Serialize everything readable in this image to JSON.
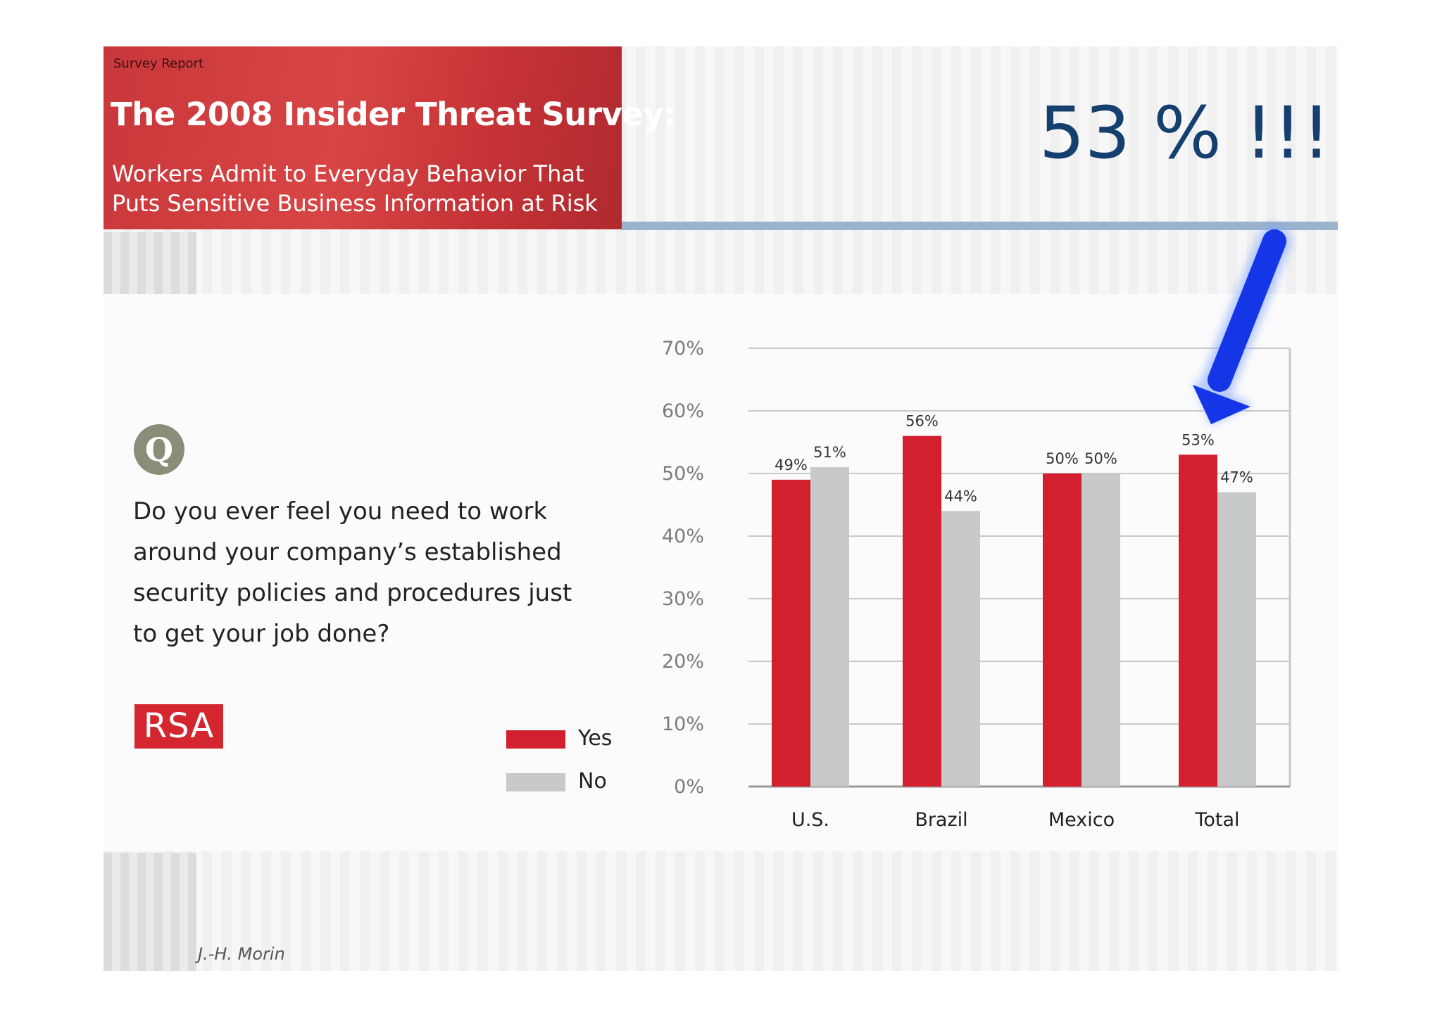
{
  "header": {
    "tag": "Survey Report",
    "title": "The 2008 Insider Threat Survey:",
    "subtitle_line1": "Workers Admit to Everyday Behavior That",
    "subtitle_line2": "Puts Sensitive Business Information at Risk"
  },
  "headline": "53 % !!!",
  "question": {
    "badge": "Q",
    "text": "Do you ever feel you need to work around your company’s established security policies and procedures just to get your job done?"
  },
  "logo": {
    "text": "RSA"
  },
  "footer": {
    "author": "J.-H. Morin"
  },
  "colors": {
    "yes": "#d3202f",
    "no": "#c8c9ca",
    "header_red": "#d04040",
    "accent_blue": "#143f6e",
    "arrow_blue": "#1436e6"
  },
  "chart_data": {
    "type": "bar",
    "title": "",
    "xlabel": "",
    "ylabel": "",
    "categories": [
      "U.S.",
      "Brazil",
      "Mexico",
      "Total"
    ],
    "series": [
      {
        "name": "Yes",
        "values": [
          49,
          56,
          50,
          53
        ],
        "labels": [
          "49%",
          "56%",
          "50%",
          "53%"
        ]
      },
      {
        "name": "No",
        "values": [
          51,
          44,
          50,
          47
        ],
        "labels": [
          "51%",
          "44%",
          "50%",
          "47%"
        ]
      }
    ],
    "ylim": [
      0,
      70
    ],
    "yticks": [
      0,
      10,
      20,
      30,
      40,
      50,
      60,
      70
    ],
    "ytick_labels": [
      "0%",
      "10%",
      "20%",
      "30%",
      "40%",
      "50%",
      "60%",
      "70%"
    ],
    "grid": true,
    "legend": "bottom-left",
    "annotation": "arrow pointing to Total Yes bar"
  }
}
